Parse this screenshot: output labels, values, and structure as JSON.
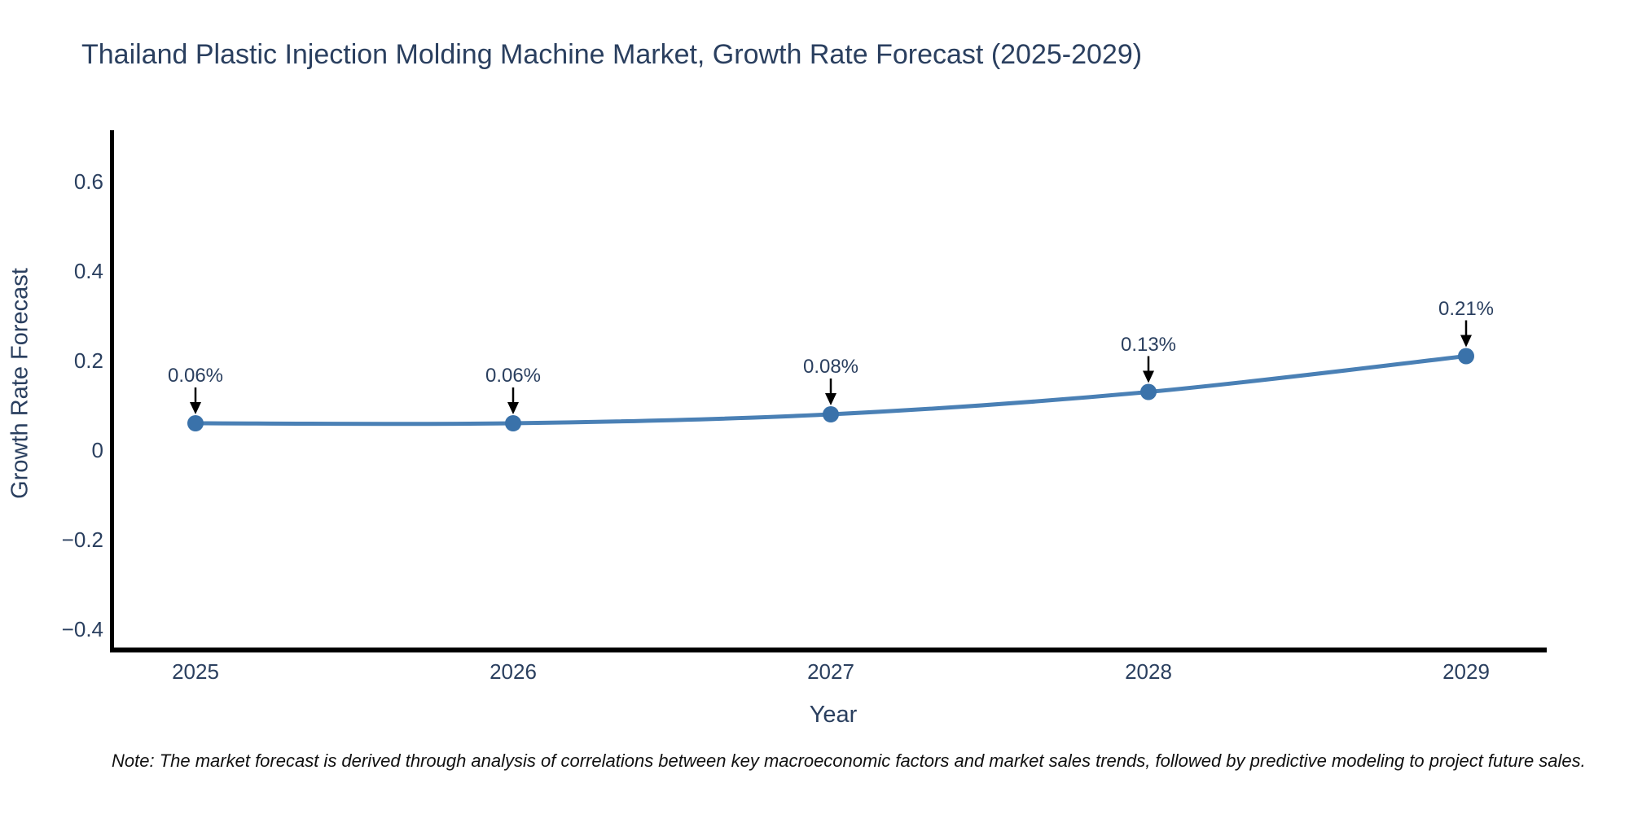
{
  "chart_data": {
    "type": "line",
    "title": "Thailand Plastic Injection Molding Machine Market, Growth Rate Forecast (2025-2029)",
    "xlabel": "Year",
    "ylabel": "Growth Rate Forecast",
    "x": [
      2025,
      2026,
      2027,
      2028,
      2029
    ],
    "series": [
      {
        "name": "Growth Rate Forecast",
        "values": [
          0.06,
          0.06,
          0.08,
          0.13,
          0.21
        ],
        "point_labels": [
          "0.06%",
          "0.06%",
          "0.08%",
          "0.13%",
          "0.21%"
        ]
      }
    ],
    "xtick_labels": [
      "2025",
      "2026",
      "2027",
      "2028",
      "2029"
    ],
    "ytick_values": [
      0.6,
      0.4,
      0.2,
      0,
      -0.2,
      -0.4
    ],
    "ytick_labels": [
      "0.6",
      "0.4",
      "0.2",
      "0",
      "−0.2",
      "−0.4"
    ],
    "ylim": [
      -0.45,
      0.71
    ],
    "grid": false,
    "legend": false,
    "line_shape": "spline",
    "annotation_arrows": true
  },
  "note": {
    "text": "Note: The market forecast is derived through analysis of correlations between key macroeconomic factors and market sales trends, followed by predictive modeling to project future sales."
  },
  "colors": {
    "title_text": "#2a3f5f",
    "tick_text": "#2a3f5f",
    "line": "#4a80b5",
    "marker": "#3a72aa",
    "axis_line": "#000000",
    "arrow": "#000000",
    "note_text": "#111111",
    "background": "#ffffff"
  }
}
